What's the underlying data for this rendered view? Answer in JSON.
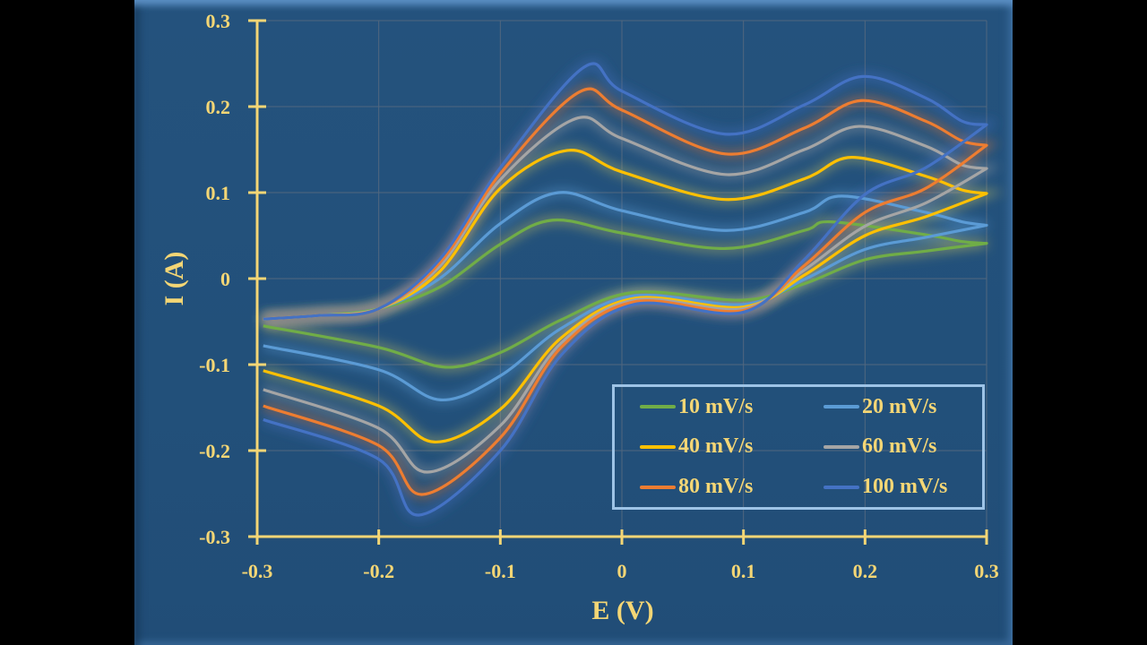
{
  "chart_data": {
    "type": "line",
    "xlabel": "E (V)",
    "ylabel": "I (A)",
    "xlim": [
      -0.3,
      0.3
    ],
    "ylim": [
      -0.3,
      0.3
    ],
    "xticks": [
      "-0.3",
      "-0.2",
      "-0.1",
      "0",
      "0.1",
      "0.2",
      "0.3"
    ],
    "yticks": [
      "-0.3",
      "-0.2",
      "-0.1",
      "0",
      "0.1",
      "0.2",
      "0.3"
    ],
    "grid": true,
    "legend_placement": "bottom-right",
    "series": [
      {
        "name": "10 mV/s",
        "color": "#70ad47",
        "forward": [
          [
            -0.295,
            -0.047
          ],
          [
            -0.25,
            -0.043
          ],
          [
            -0.2,
            -0.035
          ],
          [
            -0.15,
            -0.01
          ],
          [
            -0.1,
            0.04
          ],
          [
            -0.057,
            0.068
          ],
          [
            0,
            0.053
          ],
          [
            0.085,
            0.035
          ],
          [
            0.15,
            0.056
          ],
          [
            0.172,
            0.066
          ],
          [
            0.25,
            0.051
          ],
          [
            0.28,
            0.043
          ],
          [
            0.3,
            0.041
          ]
        ],
        "reverse": [
          [
            0.25,
            0.032
          ],
          [
            0.2,
            0.022
          ],
          [
            0.15,
            -0.006
          ],
          [
            0.1,
            -0.025
          ],
          [
            0.01,
            -0.016
          ],
          [
            -0.05,
            -0.048
          ],
          [
            -0.1,
            -0.086
          ],
          [
            -0.145,
            -0.103
          ],
          [
            -0.2,
            -0.08
          ],
          [
            -0.295,
            -0.055
          ]
        ]
      },
      {
        "name": "20 mV/s",
        "color": "#5b9bd5",
        "forward": [
          [
            -0.295,
            -0.047
          ],
          [
            -0.25,
            -0.043
          ],
          [
            -0.2,
            -0.035
          ],
          [
            -0.15,
            0.0
          ],
          [
            -0.1,
            0.064
          ],
          [
            -0.052,
            0.1
          ],
          [
            0,
            0.079
          ],
          [
            0.085,
            0.056
          ],
          [
            0.15,
            0.077
          ],
          [
            0.181,
            0.096
          ],
          [
            0.25,
            0.077
          ],
          [
            0.28,
            0.066
          ],
          [
            0.3,
            0.062
          ]
        ],
        "reverse": [
          [
            0.25,
            0.048
          ],
          [
            0.2,
            0.034
          ],
          [
            0.15,
            -0.001
          ],
          [
            0.1,
            -0.03
          ],
          [
            0.01,
            -0.02
          ],
          [
            -0.05,
            -0.058
          ],
          [
            -0.1,
            -0.113
          ],
          [
            -0.149,
            -0.141
          ],
          [
            -0.2,
            -0.106
          ],
          [
            -0.295,
            -0.078
          ]
        ]
      },
      {
        "name": "40 mV/s",
        "color": "#ffc000",
        "forward": [
          [
            -0.295,
            -0.047
          ],
          [
            -0.25,
            -0.043
          ],
          [
            -0.2,
            -0.035
          ],
          [
            -0.15,
            0.008
          ],
          [
            -0.1,
            0.105
          ],
          [
            -0.045,
            0.149
          ],
          [
            0,
            0.124
          ],
          [
            0.085,
            0.092
          ],
          [
            0.15,
            0.116
          ],
          [
            0.189,
            0.141
          ],
          [
            0.25,
            0.119
          ],
          [
            0.28,
            0.103
          ],
          [
            0.3,
            0.099
          ]
        ],
        "reverse": [
          [
            0.25,
            0.072
          ],
          [
            0.2,
            0.05
          ],
          [
            0.15,
            0.004
          ],
          [
            0.1,
            -0.033
          ],
          [
            0.01,
            -0.023
          ],
          [
            -0.05,
            -0.069
          ],
          [
            -0.1,
            -0.152
          ],
          [
            -0.154,
            -0.19
          ],
          [
            -0.2,
            -0.148
          ],
          [
            -0.295,
            -0.107
          ]
        ]
      },
      {
        "name": "60 mV/s",
        "color": "#a5a5a5",
        "forward": [
          [
            -0.295,
            -0.047
          ],
          [
            -0.25,
            -0.043
          ],
          [
            -0.2,
            -0.035
          ],
          [
            -0.15,
            0.014
          ],
          [
            -0.1,
            0.115
          ],
          [
            -0.038,
            0.186
          ],
          [
            0,
            0.163
          ],
          [
            0.085,
            0.121
          ],
          [
            0.15,
            0.15
          ],
          [
            0.195,
            0.177
          ],
          [
            0.25,
            0.154
          ],
          [
            0.28,
            0.132
          ],
          [
            0.3,
            0.128
          ]
        ],
        "reverse": [
          [
            0.25,
            0.088
          ],
          [
            0.2,
            0.061
          ],
          [
            0.15,
            0.01
          ],
          [
            0.1,
            -0.035
          ],
          [
            0.01,
            -0.025
          ],
          [
            -0.05,
            -0.075
          ],
          [
            -0.1,
            -0.171
          ],
          [
            -0.16,
            -0.225
          ],
          [
            -0.2,
            -0.174
          ],
          [
            -0.295,
            -0.129
          ]
        ]
      },
      {
        "name": "80 mV/s",
        "color": "#ed7d31",
        "forward": [
          [
            -0.295,
            -0.047
          ],
          [
            -0.25,
            -0.043
          ],
          [
            -0.2,
            -0.035
          ],
          [
            -0.15,
            0.018
          ],
          [
            -0.1,
            0.122
          ],
          [
            -0.035,
            0.217
          ],
          [
            0,
            0.196
          ],
          [
            0.085,
            0.145
          ],
          [
            0.15,
            0.175
          ],
          [
            0.197,
            0.207
          ],
          [
            0.25,
            0.183
          ],
          [
            0.28,
            0.16
          ],
          [
            0.3,
            0.155
          ]
        ],
        "reverse": [
          [
            0.25,
            0.105
          ],
          [
            0.2,
            0.077
          ],
          [
            0.15,
            0.015
          ],
          [
            0.1,
            -0.037
          ],
          [
            0.01,
            -0.027
          ],
          [
            -0.05,
            -0.08
          ],
          [
            -0.1,
            -0.185
          ],
          [
            -0.164,
            -0.251
          ],
          [
            -0.2,
            -0.194
          ],
          [
            -0.295,
            -0.148
          ]
        ]
      },
      {
        "name": "100 mV/s",
        "color": "#4472c4",
        "forward": [
          [
            -0.295,
            -0.047
          ],
          [
            -0.25,
            -0.043
          ],
          [
            -0.2,
            -0.035
          ],
          [
            -0.15,
            0.022
          ],
          [
            -0.1,
            0.129
          ],
          [
            -0.031,
            0.246
          ],
          [
            0,
            0.218
          ],
          [
            0.085,
            0.168
          ],
          [
            0.15,
            0.202
          ],
          [
            0.198,
            0.235
          ],
          [
            0.25,
            0.21
          ],
          [
            0.28,
            0.183
          ],
          [
            0.3,
            0.179
          ]
        ],
        "reverse": [
          [
            0.25,
            0.129
          ],
          [
            0.2,
            0.098
          ],
          [
            0.15,
            0.022
          ],
          [
            0.1,
            -0.039
          ],
          [
            0.01,
            -0.03
          ],
          [
            -0.05,
            -0.089
          ],
          [
            -0.1,
            -0.2
          ],
          [
            -0.167,
            -0.275
          ],
          [
            -0.2,
            -0.21
          ],
          [
            -0.295,
            -0.164
          ]
        ]
      }
    ]
  },
  "colors": {
    "axis": "#f4d675",
    "background": "#22507a",
    "legend_border": "#9dc3e6",
    "grid": "#51677f"
  }
}
